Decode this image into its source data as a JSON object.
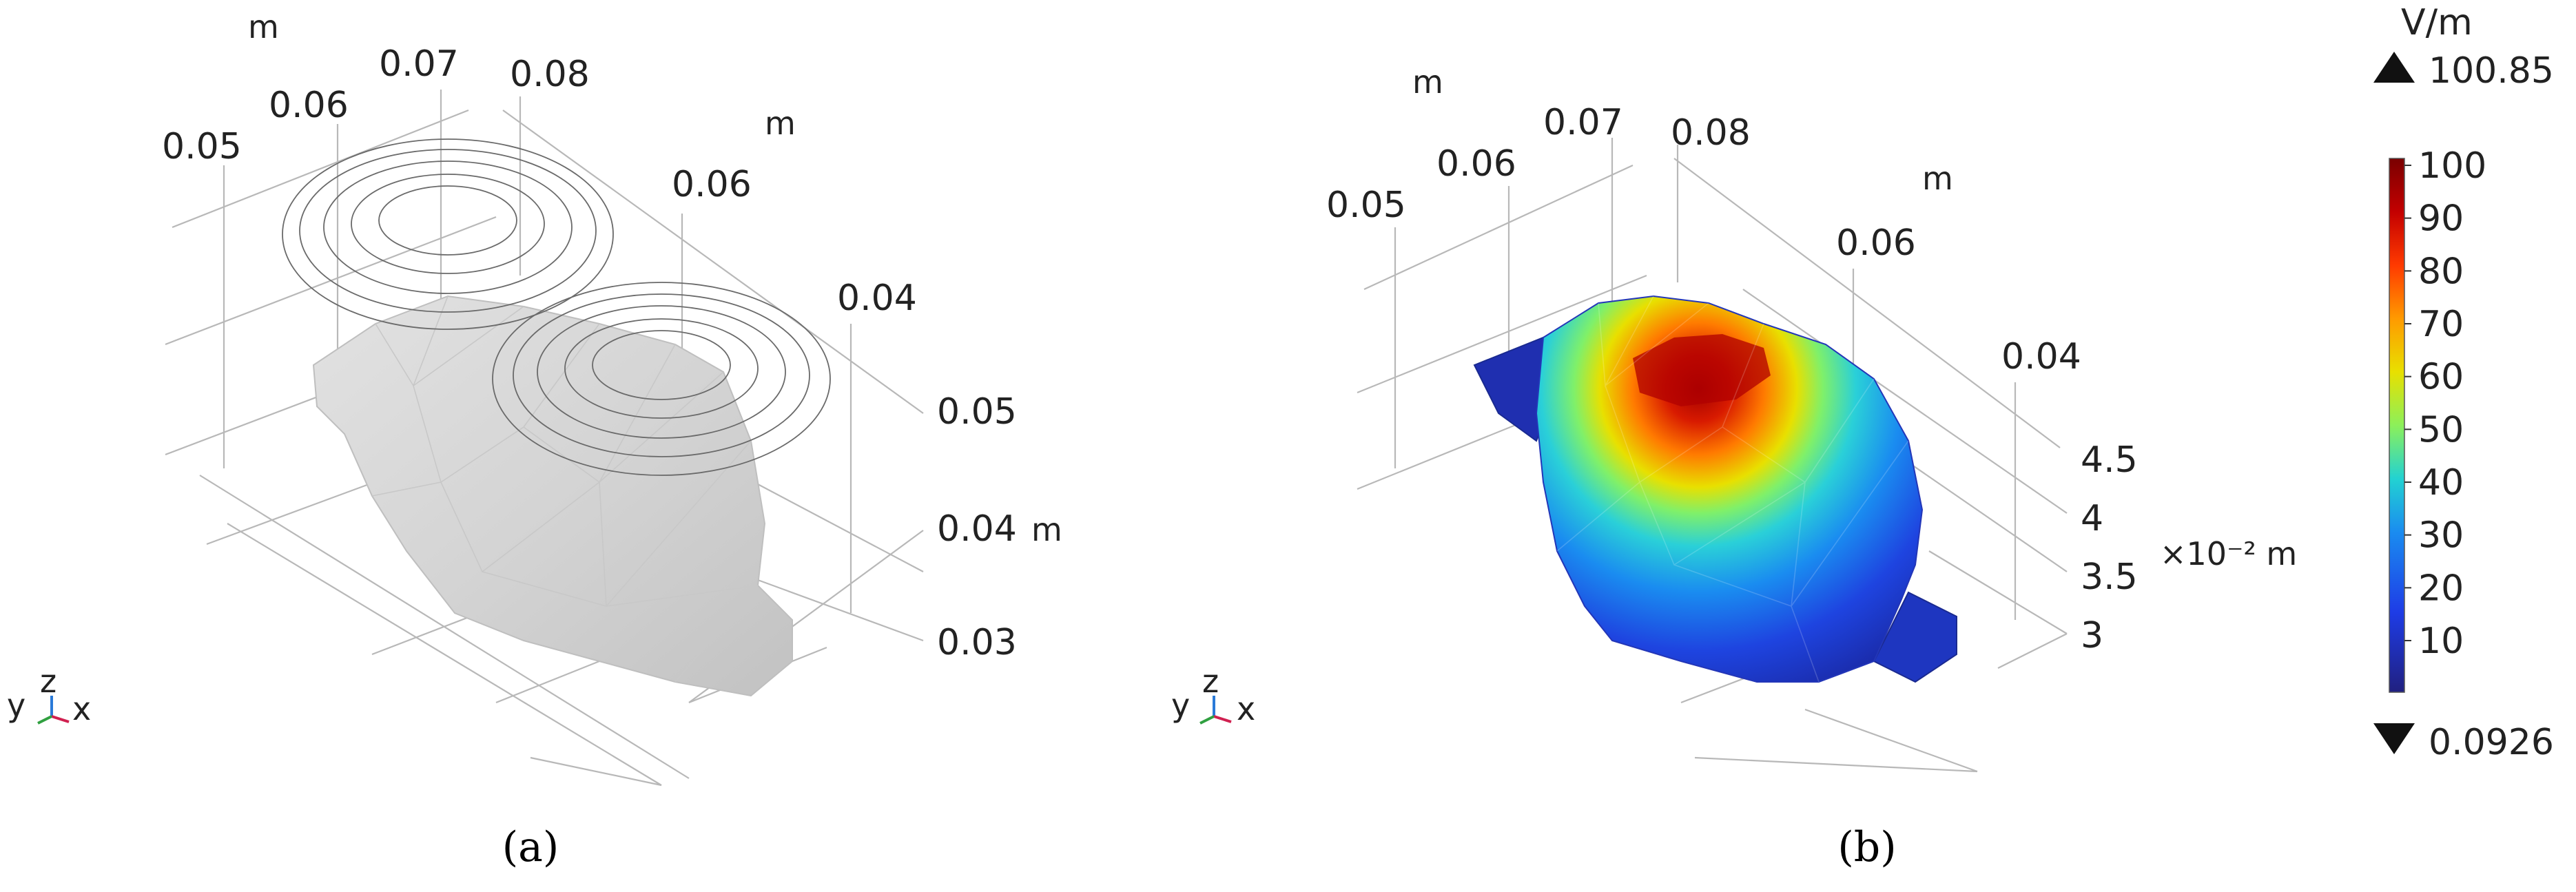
{
  "panel_a": {
    "label": "(a)",
    "axis_unit": "m",
    "top_ticks": [
      "0.05",
      "0.06",
      "0.07",
      "0.08"
    ],
    "right_ticks": [
      "0.06",
      "0.04"
    ],
    "side_ticks": [
      "0.05",
      "0.04",
      "0.03"
    ],
    "side_unit": "m",
    "triad": {
      "y": "y",
      "z": "z",
      "x": "x"
    }
  },
  "panel_b": {
    "label": "(b)",
    "axis_unit": "m",
    "top_ticks": [
      "0.05",
      "0.06",
      "0.07",
      "0.08"
    ],
    "right_ticks": [
      "0.06",
      "0.04"
    ],
    "side_ticks": [
      "4.5",
      "4",
      "3.5",
      "3"
    ],
    "side_unit": "×10⁻² m",
    "triad": {
      "y": "y",
      "z": "z",
      "x": "x"
    }
  },
  "colorbar": {
    "unit": "V/m",
    "max_value": "100.85",
    "min_value": "0.0926",
    "ticks": [
      "100",
      "90",
      "80",
      "70",
      "60",
      "50",
      "40",
      "30",
      "20",
      "10"
    ],
    "colors": [
      "#7a0000",
      "#c30000",
      "#ff3a00",
      "#ff9a00",
      "#e8e000",
      "#8cf05a",
      "#22d2d2",
      "#1a8cf0",
      "#1e3ce6",
      "#202080"
    ]
  }
}
